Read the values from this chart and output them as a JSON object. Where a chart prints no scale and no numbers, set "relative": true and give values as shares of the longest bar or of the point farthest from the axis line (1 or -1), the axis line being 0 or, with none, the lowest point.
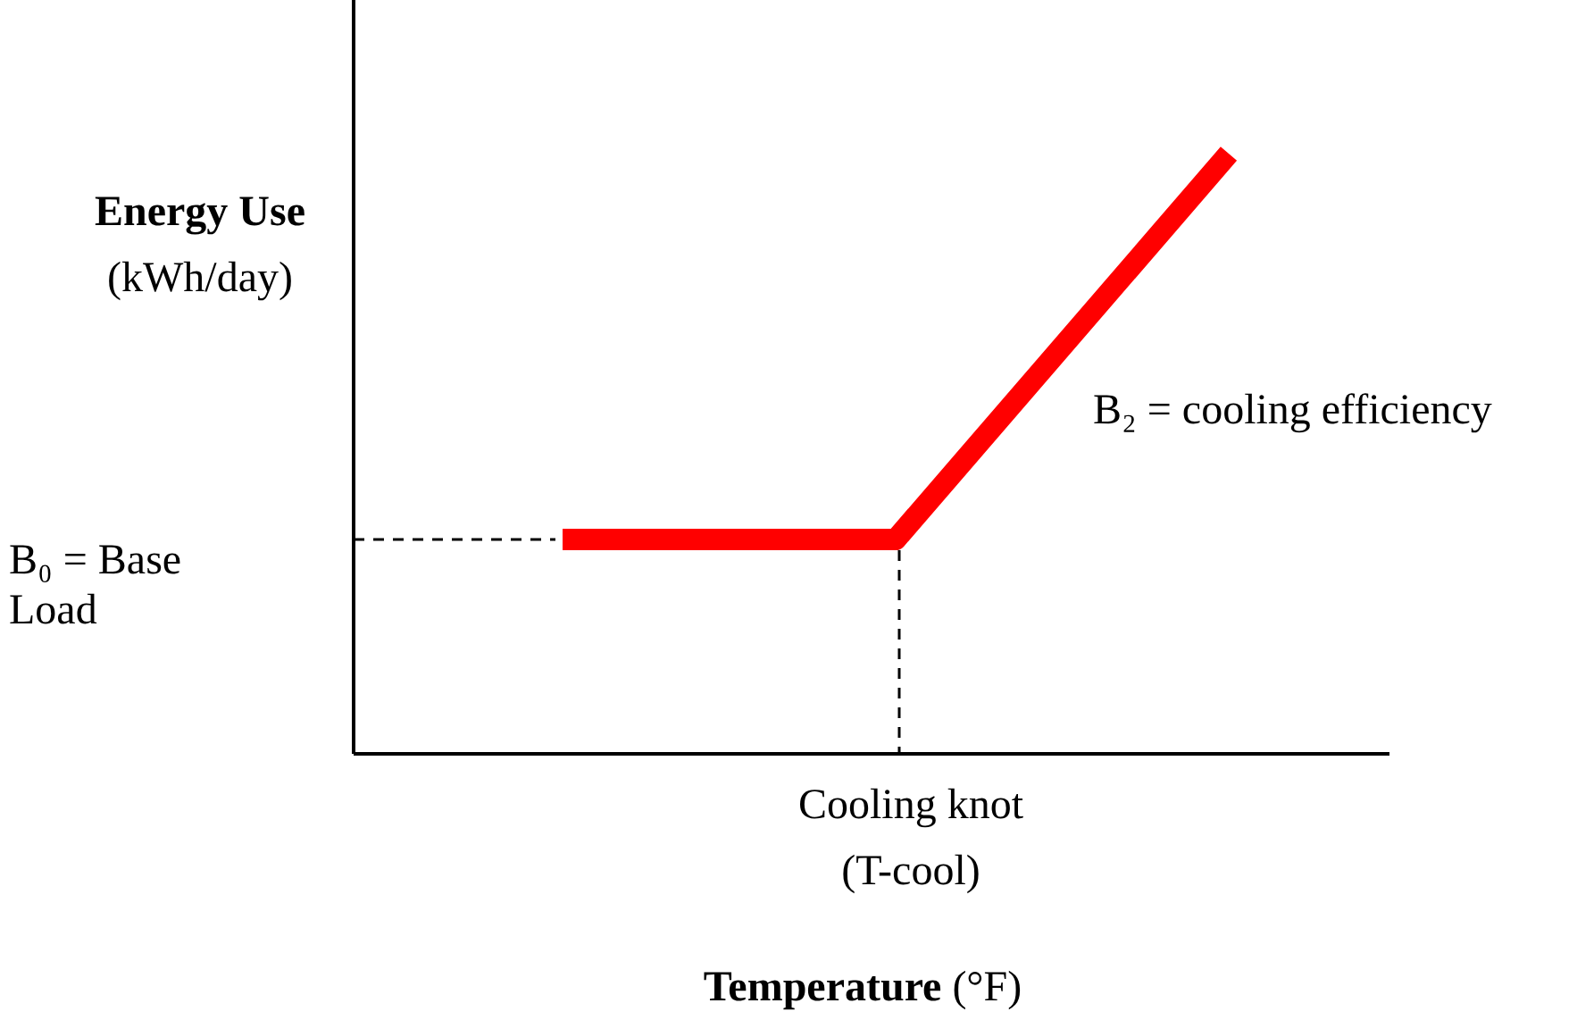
{
  "chart_data": {
    "type": "line",
    "relative": true,
    "xlabel": "Temperature (°F)",
    "ylabel": "Energy Use (kWh/day)",
    "categories": [
      null,
      null,
      null
    ],
    "series": [
      {
        "color": "#ff0000",
        "values": [
          0.357,
          0.357,
          1
        ]
      }
    ],
    "ref_lines": [
      {
        "axis": "y",
        "value": 0.357,
        "label": "B₀ = Base Load",
        "line_style": "dashed",
        "color": "#000000"
      },
      {
        "axis": "x",
        "label": "Cooling knot (T-cool)",
        "line_style": "dashed",
        "color": "#000000"
      }
    ],
    "annotations": [
      "B₂ = cooling efficiency"
    ],
    "marker": "none",
    "line_style": "solid"
  }
}
